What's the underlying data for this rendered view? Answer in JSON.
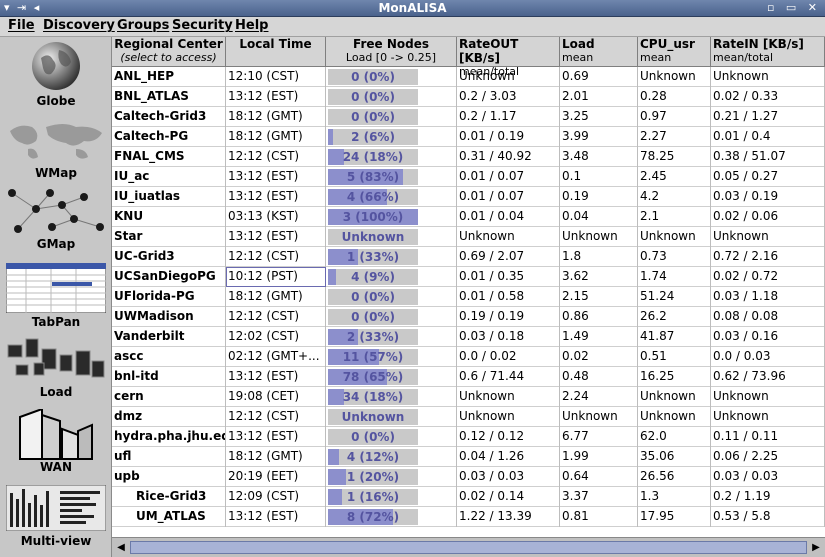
{
  "window": {
    "title": "MonALISA",
    "left_controls": "▾ ⇥ ◂",
    "right_controls": "▫ ▭ ✕"
  },
  "menu": [
    {
      "label": "File"
    },
    {
      "label": "Discovery"
    },
    {
      "label": "Groups"
    },
    {
      "label": "Security"
    },
    {
      "label": "Help"
    }
  ],
  "sidebar": [
    {
      "label": "Globe",
      "icon": "globe-icon"
    },
    {
      "label": "WMap",
      "icon": "world-map-icon"
    },
    {
      "label": "GMap",
      "icon": "graph-map-icon"
    },
    {
      "label": "TabPan",
      "icon": "table-panel-icon"
    },
    {
      "label": "Load",
      "icon": "load-blocks-icon"
    },
    {
      "label": "WAN",
      "icon": "wan-buildings-icon"
    },
    {
      "label": "Multi-view",
      "icon": "multi-view-icon"
    }
  ],
  "table": {
    "headers": [
      {
        "main": "Regional Center",
        "sub": "(select to access)"
      },
      {
        "main": "Local Time",
        "sub": ""
      },
      {
        "main": "Free Nodes",
        "sub": "Load [0 -> 0.25]"
      },
      {
        "main": "RateOUT [KB/s]",
        "sub": "mean/total"
      },
      {
        "main": "Load",
        "sub": "mean"
      },
      {
        "main": "CPU_usr",
        "sub": "mean"
      },
      {
        "main": "RateIN [KB/s]",
        "sub": "mean/total"
      }
    ],
    "rows": [
      {
        "site": "ANL_HEP",
        "time": "12:10 (CST)",
        "free": "0 (0%)",
        "fill": 0.0,
        "rateout": "Unknown",
        "load": "0.69",
        "cpu": "Unknown",
        "ratein": "Unknown"
      },
      {
        "site": "BNL_ATLAS",
        "time": "13:12 (EST)",
        "free": "0 (0%)",
        "fill": 0.0,
        "rateout": "0.2 / 3.03",
        "load": "2.01",
        "cpu": "0.28",
        "ratein": "0.02 / 0.33"
      },
      {
        "site": "Caltech-Grid3",
        "time": "18:12 (GMT)",
        "free": "0 (0%)",
        "fill": 0.0,
        "rateout": "0.2 / 1.17",
        "load": "3.25",
        "cpu": "0.97",
        "ratein": "0.21 / 1.27"
      },
      {
        "site": "Caltech-PG",
        "time": "18:12 (GMT)",
        "free": "2 (6%)",
        "fill": 0.06,
        "rateout": "0.01 / 0.19",
        "load": "3.99",
        "cpu": "2.27",
        "ratein": "0.01 / 0.4"
      },
      {
        "site": "FNAL_CMS",
        "time": "12:12 (CST)",
        "free": "24 (18%)",
        "fill": 0.18,
        "rateout": "0.31 / 40.92",
        "load": "3.48",
        "cpu": "78.25",
        "ratein": "0.38 / 51.07"
      },
      {
        "site": "IU_ac",
        "time": "13:12 (EST)",
        "free": "5 (83%)",
        "fill": 0.83,
        "rateout": "0.01 / 0.07",
        "load": "0.1",
        "cpu": "2.45",
        "ratein": "0.05 / 0.27"
      },
      {
        "site": "IU_iuatlas",
        "time": "13:12 (EST)",
        "free": "4 (66%)",
        "fill": 0.66,
        "rateout": "0.01 / 0.07",
        "load": "0.19",
        "cpu": "4.2",
        "ratein": "0.03 / 0.19"
      },
      {
        "site": "KNU",
        "time": "03:13 (KST)",
        "free": "3 (100%)",
        "fill": 1.0,
        "rateout": "0.01 / 0.04",
        "load": "0.04",
        "cpu": "2.1",
        "ratein": "0.02 / 0.06"
      },
      {
        "site": "Star",
        "time": "13:12 (EST)",
        "free": "Unknown",
        "fill": 0.0,
        "rateout": "Unknown",
        "load": "Unknown",
        "cpu": "Unknown",
        "ratein": "Unknown"
      },
      {
        "site": "UC-Grid3",
        "time": "12:12 (CST)",
        "free": "1 (33%)",
        "fill": 0.33,
        "rateout": "0.69 / 2.07",
        "load": "1.8",
        "cpu": "0.73",
        "ratein": "0.72 / 2.16"
      },
      {
        "site": "UCSanDiegoPG",
        "time": "10:12 (PST)",
        "free": "4 (9%)",
        "fill": 0.09,
        "rateout": "0.01 / 0.35",
        "load": "3.62",
        "cpu": "1.74",
        "ratein": "0.02 / 0.72"
      },
      {
        "site": "UFlorida-PG",
        "time": "18:12 (GMT)",
        "free": "0 (0%)",
        "fill": 0.0,
        "rateout": "0.01 / 0.58",
        "load": "2.15",
        "cpu": "51.24",
        "ratein": "0.03 / 1.18"
      },
      {
        "site": "UWMadison",
        "time": "12:12 (CST)",
        "free": "0 (0%)",
        "fill": 0.0,
        "rateout": "0.19 / 0.19",
        "load": "0.86",
        "cpu": "26.2",
        "ratein": "0.08 / 0.08"
      },
      {
        "site": "Vanderbilt",
        "time": "12:02 (CST)",
        "free": "2 (33%)",
        "fill": 0.33,
        "rateout": "0.03 / 0.18",
        "load": "1.49",
        "cpu": "41.87",
        "ratein": "0.03 / 0.16"
      },
      {
        "site": "ascc",
        "time": "02:12 (GMT+...",
        "free": "11 (57%)",
        "fill": 0.57,
        "rateout": "0.0 / 0.02",
        "load": "0.02",
        "cpu": "0.51",
        "ratein": "0.0 / 0.03"
      },
      {
        "site": "bnl-itd",
        "time": "13:12 (EST)",
        "free": "78 (65%)",
        "fill": 0.65,
        "rateout": "0.6 / 71.44",
        "load": "0.48",
        "cpu": "16.25",
        "ratein": "0.62 / 73.96"
      },
      {
        "site": "cern",
        "time": "19:08 (CET)",
        "free": "34 (18%)",
        "fill": 0.18,
        "rateout": "Unknown",
        "load": "2.24",
        "cpu": "Unknown",
        "ratein": "Unknown"
      },
      {
        "site": "dmz",
        "time": "12:12 (CST)",
        "free": "Unknown",
        "fill": 0.0,
        "rateout": "Unknown",
        "load": "Unknown",
        "cpu": "Unknown",
        "ratein": "Unknown"
      },
      {
        "site": "hydra.pha.jhu.edu",
        "time": "13:12 (EST)",
        "free": "0 (0%)",
        "fill": 0.0,
        "rateout": "0.12 / 0.12",
        "load": "6.77",
        "cpu": "62.0",
        "ratein": "0.11 / 0.11"
      },
      {
        "site": "ufl",
        "time": "18:12 (GMT)",
        "free": "4 (12%)",
        "fill": 0.12,
        "rateout": "0.04 / 1.26",
        "load": "1.99",
        "cpu": "35.06",
        "ratein": "0.06 / 2.25"
      },
      {
        "site": "upb",
        "time": "20:19 (EET)",
        "free": "1 (20%)",
        "fill": 0.2,
        "rateout": "0.03 / 0.03",
        "load": "0.64",
        "cpu": "26.56",
        "ratein": "0.03 / 0.03"
      },
      {
        "site": "Rice-Grid3",
        "time": "12:09 (CST)",
        "free": "1 (16%)",
        "fill": 0.16,
        "rateout": "0.02 / 0.14",
        "load": "3.37",
        "cpu": "1.3",
        "ratein": "0.2 / 1.19",
        "indent": true
      },
      {
        "site": "UM_ATLAS",
        "time": "13:12 (EST)",
        "free": "8 (72%)",
        "fill": 0.72,
        "rateout": "1.22 / 13.39",
        "load": "0.81",
        "cpu": "17.95",
        "ratein": "0.53 / 5.8",
        "indent": true
      }
    ]
  },
  "colors": {
    "title_bar": "#4a628c",
    "bar_fill": "#8c8fcc",
    "bar_track": "#c9c9c9",
    "bar_text": "#5454a0"
  }
}
